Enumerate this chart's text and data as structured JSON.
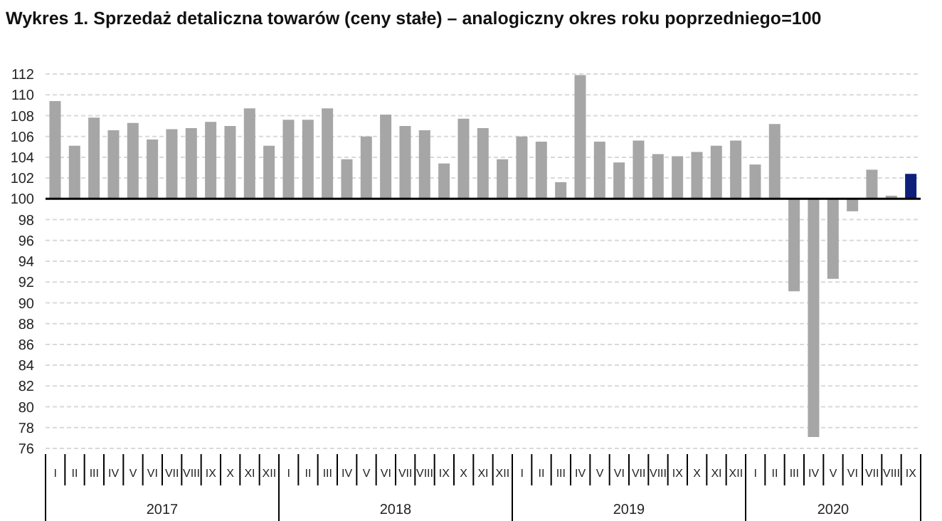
{
  "chart_data": {
    "type": "bar",
    "title": "Wykres 1. Sprzedaż detaliczna towarów (ceny stałe) – analogiczny okres roku poprzedniego=100",
    "categories": [
      "I",
      "II",
      "III",
      "IV",
      "V",
      "VI",
      "VII",
      "VIII",
      "IX",
      "X",
      "XI",
      "XII",
      "I",
      "II",
      "III",
      "IV",
      "V",
      "VI",
      "VII",
      "VIII",
      "IX",
      "X",
      "XI",
      "XII",
      "I",
      "II",
      "III",
      "IV",
      "V",
      "VI",
      "VII",
      "VIII",
      "IX",
      "X",
      "XI",
      "XII",
      "I",
      "II",
      "III",
      "IV",
      "V",
      "VI",
      "VII",
      "VIII",
      "IX"
    ],
    "base": [
      100,
      100,
      100,
      100,
      100,
      100,
      100,
      100,
      100,
      100,
      100,
      100,
      100,
      100,
      100,
      100,
      100,
      100,
      100,
      100,
      100,
      100,
      100,
      100,
      100,
      100,
      100,
      100,
      100,
      100,
      100,
      100,
      100,
      100,
      100,
      100,
      100,
      100,
      100,
      100,
      100,
      100,
      100,
      100,
      100
    ],
    "values": [
      9.4,
      5.1,
      7.8,
      6.6,
      7.3,
      5.7,
      6.7,
      6.8,
      7.4,
      7.0,
      8.7,
      5.1,
      7.6,
      7.6,
      8.7,
      3.8,
      6.0,
      8.1,
      7.0,
      6.6,
      3.4,
      7.7,
      6.8,
      3.8,
      6.0,
      5.5,
      1.6,
      11.9,
      5.5,
      3.5,
      5.6,
      4.3,
      4.1,
      4.5,
      5.1,
      5.6,
      3.3,
      7.2,
      -8.9,
      -22.9,
      -7.7,
      -1.2,
      2.8,
      0.3,
      2.4
    ],
    "colors": [
      "#a6a6a6",
      "#a6a6a6",
      "#a6a6a6",
      "#a6a6a6",
      "#a6a6a6",
      "#a6a6a6",
      "#a6a6a6",
      "#a6a6a6",
      "#a6a6a6",
      "#a6a6a6",
      "#a6a6a6",
      "#a6a6a6",
      "#a6a6a6",
      "#a6a6a6",
      "#a6a6a6",
      "#a6a6a6",
      "#a6a6a6",
      "#a6a6a6",
      "#a6a6a6",
      "#a6a6a6",
      "#a6a6a6",
      "#a6a6a6",
      "#a6a6a6",
      "#a6a6a6",
      "#a6a6a6",
      "#a6a6a6",
      "#a6a6a6",
      "#a6a6a6",
      "#a6a6a6",
      "#a6a6a6",
      "#a6a6a6",
      "#a6a6a6",
      "#a6a6a6",
      "#a6a6a6",
      "#a6a6a6",
      "#a6a6a6",
      "#a6a6a6",
      "#a6a6a6",
      "#a6a6a6",
      "#a6a6a6",
      "#a6a6a6",
      "#a6a6a6",
      "#a6a6a6",
      "#a6a6a6",
      "#0d1f7a"
    ],
    "annotations": [
      "2017",
      "2018",
      "2019",
      "2020"
    ],
    "ylim": [
      76,
      112
    ],
    "yticks": [
      76,
      78,
      80,
      82,
      84,
      86,
      88,
      90,
      92,
      94,
      96,
      98,
      100,
      102,
      104,
      106,
      108,
      110,
      112
    ],
    "ref_lines": [
      {
        "axis": "y",
        "value": 100,
        "color": "#000000"
      }
    ],
    "grid": "y",
    "legend": false
  }
}
